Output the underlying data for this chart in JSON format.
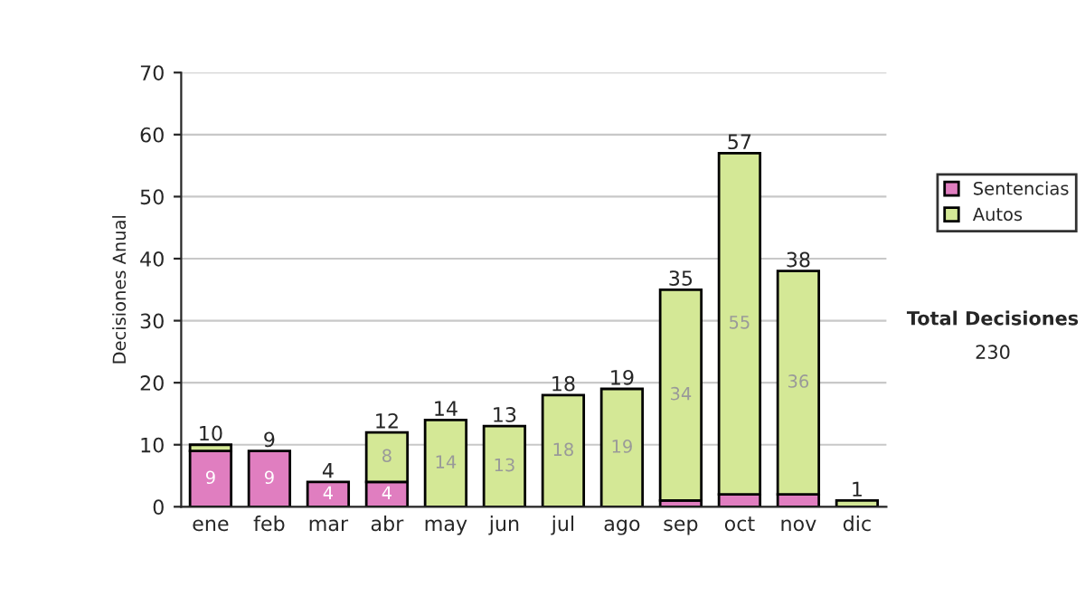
{
  "chart_data": {
    "type": "bar",
    "stacked": true,
    "ylabel": "Decisiones Anual",
    "categories": [
      "ene",
      "feb",
      "mar",
      "abr",
      "may",
      "jun",
      "jul",
      "ago",
      "sep",
      "oct",
      "nov",
      "dic"
    ],
    "series": [
      {
        "name": "Sentencias",
        "color": "#e07ec0",
        "values": [
          9,
          9,
          4,
          4,
          0,
          0,
          0,
          0,
          1,
          2,
          2,
          0
        ],
        "value_labels": [
          "9",
          "9",
          "4",
          "4",
          null,
          null,
          null,
          null,
          null,
          null,
          null,
          null
        ]
      },
      {
        "name": "Autos",
        "color": "#d4e896",
        "values": [
          1,
          0,
          0,
          8,
          14,
          13,
          18,
          19,
          34,
          55,
          36,
          1
        ],
        "value_labels": [
          null,
          null,
          null,
          "8",
          "14",
          "13",
          "18",
          "19",
          "34",
          "55",
          "36",
          null
        ]
      }
    ],
    "totals": [
      "10",
      "9",
      "4",
      "12",
      "14",
      "13",
      "18",
      "19",
      "35",
      "57",
      "38",
      "1"
    ],
    "ylim": [
      0,
      70
    ],
    "yticks": [
      0,
      10,
      20,
      30,
      40,
      50,
      60,
      70
    ],
    "grid": "y",
    "legend": "right",
    "annotations": [
      "Total Decisiones",
      "230"
    ]
  }
}
